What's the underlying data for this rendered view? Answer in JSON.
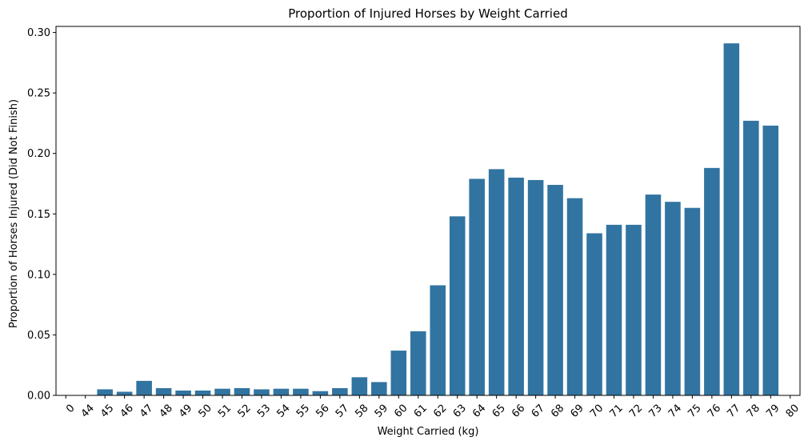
{
  "chart_data": {
    "type": "bar",
    "title": "Proportion of Injured Horses by Weight Carried",
    "xlabel": "Weight Carried (kg)",
    "ylabel": "Proportion of Horses Injured (Did Not Finish)",
    "categories": [
      "0",
      "44",
      "45",
      "46",
      "47",
      "48",
      "49",
      "50",
      "51",
      "52",
      "53",
      "54",
      "55",
      "56",
      "57",
      "58",
      "59",
      "60",
      "61",
      "62",
      "63",
      "64",
      "65",
      "66",
      "67",
      "68",
      "69",
      "70",
      "71",
      "72",
      "73",
      "74",
      "75",
      "76",
      "77",
      "78",
      "79",
      "80"
    ],
    "values": [
      0,
      0,
      0.005,
      0.003,
      0.012,
      0.006,
      0.004,
      0.004,
      0.0055,
      0.006,
      0.005,
      0.0055,
      0.0055,
      0.0035,
      0.006,
      0.015,
      0.011,
      0.037,
      0.053,
      0.091,
      0.148,
      0.179,
      0.187,
      0.18,
      0.178,
      0.174,
      0.163,
      0.134,
      0.141,
      0.141,
      0.166,
      0.16,
      0.155,
      0.188,
      0.291,
      0.227,
      0.223,
      0
    ],
    "ylim": [
      0,
      0.305
    ],
    "yticks": [
      0.0,
      0.05,
      0.1,
      0.15,
      0.2,
      0.25,
      0.3
    ],
    "ytick_labels": [
      "0.00",
      "0.05",
      "0.10",
      "0.15",
      "0.20",
      "0.25",
      "0.30"
    ],
    "bar_color": "#3274a1",
    "grid": false,
    "legend": "none"
  }
}
